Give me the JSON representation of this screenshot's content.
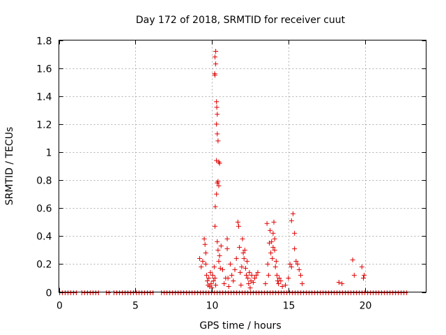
{
  "chart_data": {
    "type": "scatter",
    "title": "Day 172 of 2018, SRMTID for receiver cuut",
    "xlabel": "GPS time / hours",
    "ylabel": "SRMTID / TECUs",
    "xlim": [
      0,
      24
    ],
    "ylim": [
      0,
      1.8
    ],
    "x_ticks": [
      0,
      5,
      10,
      15,
      20
    ],
    "y_ticks": [
      0,
      0.2,
      0.4,
      0.6,
      0.8,
      1,
      1.2,
      1.4,
      1.6,
      1.8
    ],
    "x_tick_labels": [
      "0",
      "5",
      "10",
      "15",
      "20"
    ],
    "y_tick_labels": [
      "0",
      "0.2",
      "0.4",
      "0.6",
      "0.8",
      "1",
      "1.2",
      "1.4",
      "1.6",
      "1.8"
    ],
    "grid": true,
    "marker": "+",
    "color": "#e00000",
    "series": [
      {
        "name": "SRMTID",
        "baseline": {
          "y": 0,
          "x_ranges": [
            [
              0.05,
              1.2
            ],
            [
              1.5,
              2.6
            ],
            [
              3.1,
              3.4
            ],
            [
              3.6,
              6.2
            ],
            [
              6.7,
              22.8
            ]
          ]
        },
        "points": [
          [
            9.2,
            0.24
          ],
          [
            9.3,
            0.18
          ],
          [
            9.4,
            0.22
          ],
          [
            9.5,
            0.38
          ],
          [
            9.55,
            0.34
          ],
          [
            9.6,
            0.28
          ],
          [
            9.6,
            0.2
          ],
          [
            9.65,
            0.12
          ],
          [
            9.7,
            0.08
          ],
          [
            9.75,
            0.05
          ],
          [
            9.8,
            0.1
          ],
          [
            9.85,
            0.04
          ],
          [
            9.9,
            0.14
          ],
          [
            9.95,
            0.06
          ],
          [
            10.0,
            0.03
          ],
          [
            10.05,
            0.12
          ],
          [
            10.1,
            0.08
          ],
          [
            10.15,
            0.18
          ],
          [
            10.2,
            0.1
          ],
          [
            10.25,
            0.05
          ],
          [
            10.2,
            0.47
          ],
          [
            10.22,
            0.61
          ],
          [
            10.18,
            1.56
          ],
          [
            10.2,
            1.55
          ],
          [
            10.2,
            1.68
          ],
          [
            10.25,
            1.72
          ],
          [
            10.25,
            1.63
          ],
          [
            10.3,
            1.36
          ],
          [
            10.3,
            1.2
          ],
          [
            10.32,
            1.32
          ],
          [
            10.35,
            1.27
          ],
          [
            10.35,
            1.13
          ],
          [
            10.4,
            1.08
          ],
          [
            10.3,
            0.94
          ],
          [
            10.45,
            0.93
          ],
          [
            10.5,
            0.92
          ],
          [
            10.35,
            0.78
          ],
          [
            10.4,
            0.79
          ],
          [
            10.45,
            0.76
          ],
          [
            10.3,
            0.7
          ],
          [
            10.35,
            0.36
          ],
          [
            10.4,
            0.3
          ],
          [
            10.45,
            0.22
          ],
          [
            10.5,
            0.26
          ],
          [
            10.55,
            0.17
          ],
          [
            10.6,
            0.33
          ],
          [
            10.7,
            0.16
          ],
          [
            10.8,
            0.06
          ],
          [
            10.9,
            0.1
          ],
          [
            11.0,
            0.38
          ],
          [
            11.0,
            0.31
          ],
          [
            11.05,
            0.1
          ],
          [
            11.1,
            0.04
          ],
          [
            11.2,
            0.2
          ],
          [
            11.3,
            0.12
          ],
          [
            11.4,
            0.08
          ],
          [
            11.5,
            0.16
          ],
          [
            11.6,
            0.24
          ],
          [
            11.7,
            0.5
          ],
          [
            11.75,
            0.47
          ],
          [
            11.8,
            0.32
          ],
          [
            11.85,
            0.14
          ],
          [
            11.9,
            0.05
          ],
          [
            11.95,
            0.18
          ],
          [
            12.0,
            0.38
          ],
          [
            12.05,
            0.28
          ],
          [
            12.1,
            0.24
          ],
          [
            12.15,
            0.3
          ],
          [
            12.2,
            0.17
          ],
          [
            12.25,
            0.12
          ],
          [
            12.3,
            0.22
          ],
          [
            12.35,
            0.1
          ],
          [
            12.4,
            0.06
          ],
          [
            12.45,
            0.14
          ],
          [
            12.5,
            0.03
          ],
          [
            12.55,
            0.08
          ],
          [
            12.6,
            0.12
          ],
          [
            12.7,
            0.07
          ],
          [
            12.8,
            0.1
          ],
          [
            12.9,
            0.12
          ],
          [
            13.0,
            0.14
          ],
          [
            13.5,
            0.06
          ],
          [
            13.6,
            0.49
          ],
          [
            13.65,
            0.2
          ],
          [
            13.7,
            0.12
          ],
          [
            13.75,
            0.35
          ],
          [
            13.8,
            0.44
          ],
          [
            13.85,
            0.28
          ],
          [
            13.9,
            0.36
          ],
          [
            13.95,
            0.24
          ],
          [
            14.0,
            0.42
          ],
          [
            14.0,
            0.32
          ],
          [
            14.05,
            0.5
          ],
          [
            14.1,
            0.3
          ],
          [
            14.1,
            0.38
          ],
          [
            14.15,
            0.18
          ],
          [
            14.2,
            0.22
          ],
          [
            14.25,
            0.12
          ],
          [
            14.3,
            0.08
          ],
          [
            14.35,
            0.06
          ],
          [
            14.4,
            0.1
          ],
          [
            14.5,
            0.08
          ],
          [
            14.6,
            0.04
          ],
          [
            14.8,
            0.05
          ],
          [
            15.0,
            0.1
          ],
          [
            15.1,
            0.2
          ],
          [
            15.2,
            0.18
          ],
          [
            15.2,
            0.51
          ],
          [
            15.3,
            0.56
          ],
          [
            15.4,
            0.42
          ],
          [
            15.4,
            0.31
          ],
          [
            15.5,
            0.22
          ],
          [
            15.6,
            0.2
          ],
          [
            15.7,
            0.16
          ],
          [
            15.8,
            0.12
          ],
          [
            15.9,
            0.06
          ],
          [
            18.3,
            0.07
          ],
          [
            18.5,
            0.06
          ],
          [
            19.2,
            0.23
          ],
          [
            19.3,
            0.12
          ],
          [
            19.8,
            0.18
          ],
          [
            19.9,
            0.1
          ],
          [
            19.95,
            0.12
          ]
        ]
      }
    ]
  }
}
